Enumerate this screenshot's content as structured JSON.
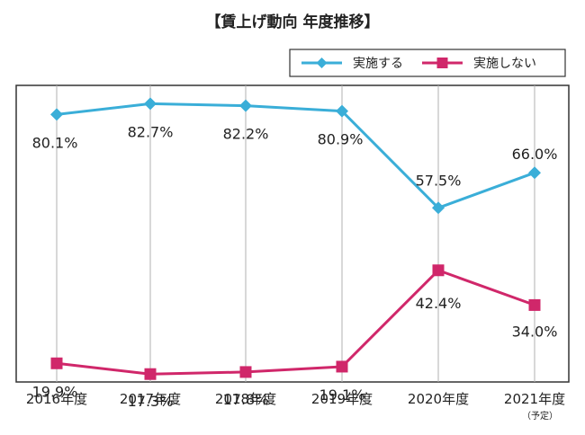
{
  "chart_data": {
    "type": "line",
    "title": "【賃上げ動向 年度推移】",
    "categories": [
      "2016年度",
      "2017年度",
      "2018年度",
      "2019年度",
      "2020年度",
      "2021年度"
    ],
    "category_notes": [
      "",
      "",
      "",
      "",
      "",
      "（予定）"
    ],
    "ylim": [
      0,
      100
    ],
    "grid": "vertical",
    "legend_position": "top-right",
    "series": [
      {
        "name": "実施する",
        "values": [
          80.1,
          82.7,
          82.2,
          80.9,
          57.5,
          66.0
        ],
        "labels": [
          "80.1%",
          "82.7%",
          "82.2%",
          "80.9%",
          "57.5%",
          "66.0%"
        ],
        "color": "#3aaed8",
        "marker": "diamond"
      },
      {
        "name": "実施しない",
        "values": [
          19.9,
          17.3,
          17.8,
          19.1,
          42.4,
          34.0
        ],
        "labels": [
          "19.9%",
          "17.3%",
          "17.8%",
          "19.1%",
          "42.4%",
          "34.0%"
        ],
        "color": "#d0276a",
        "marker": "square"
      }
    ]
  },
  "colors": {
    "frame": "#333333",
    "grid": "#b0b0b0",
    "text": "#222222"
  }
}
